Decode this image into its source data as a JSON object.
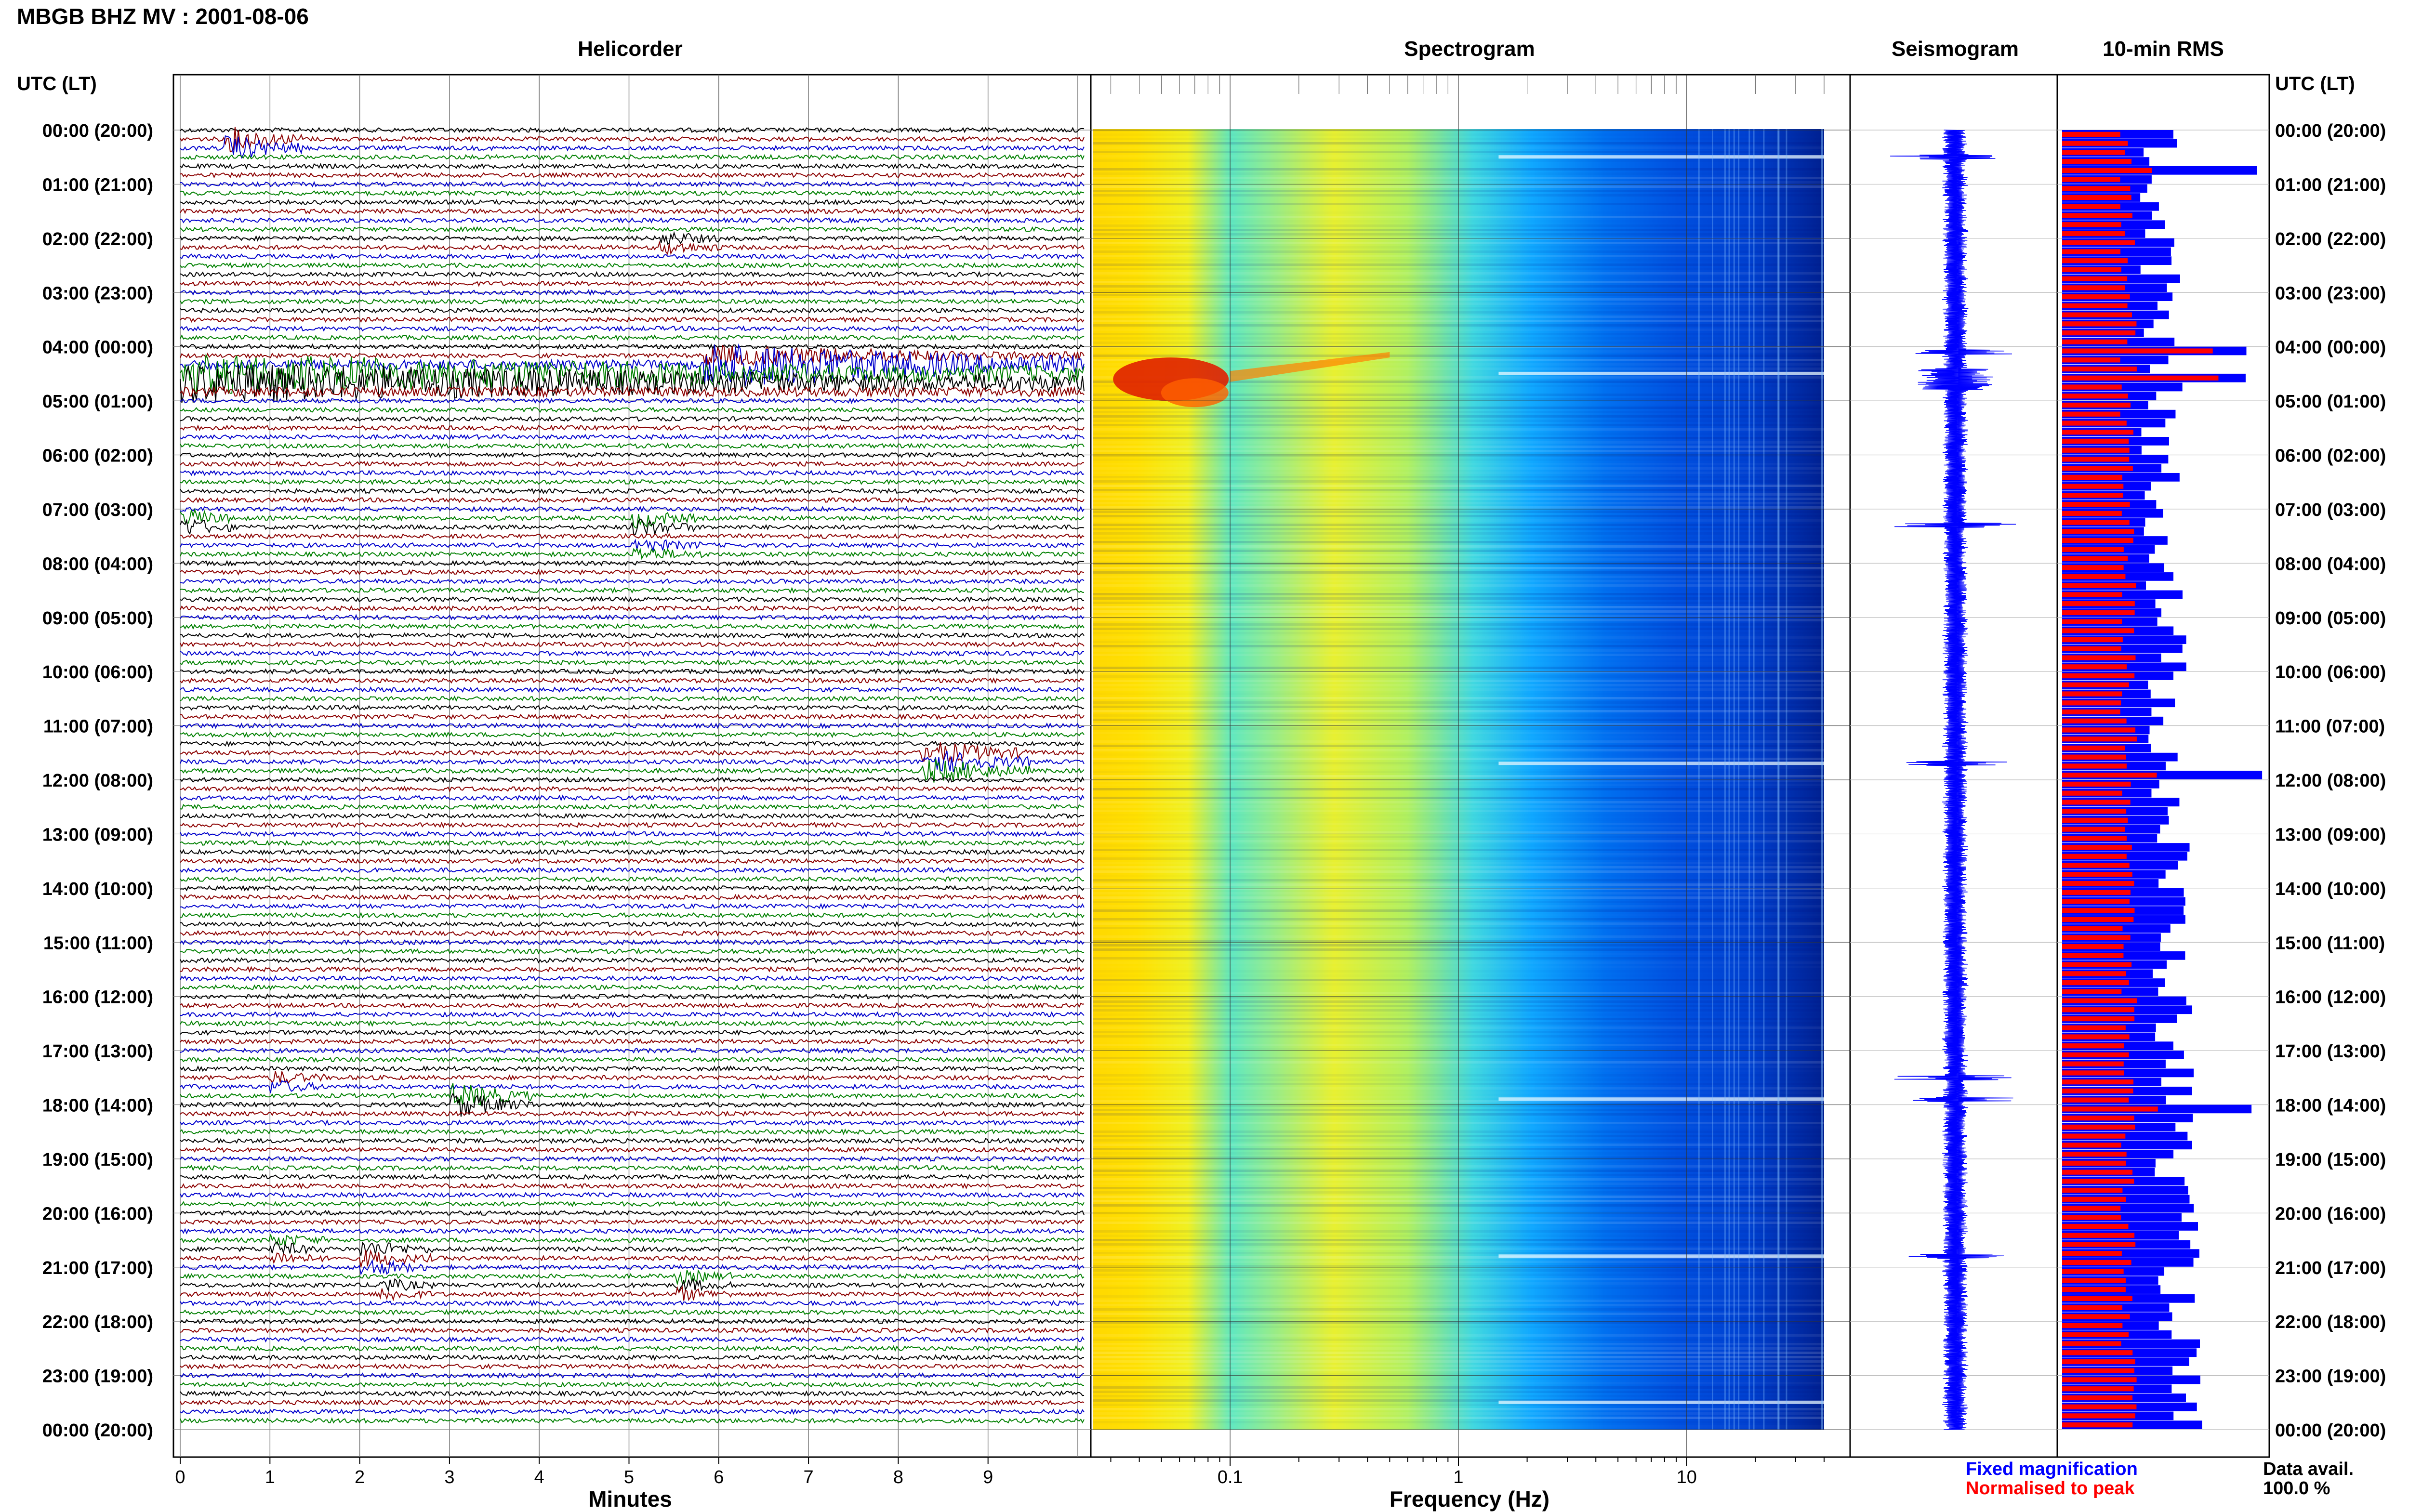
{
  "page_title": "MBGB BHZ MV : 2001-08-06",
  "left_axis_header": "UTC (LT)",
  "right_axis_header": "UTC (LT)",
  "panels": {
    "helicorder": "Helicorder",
    "spectrogram": "Spectrogram",
    "seismogram": "Seismogram",
    "rms": "10-min RMS"
  },
  "time_labels": [
    "00:00 (20:00)",
    "01:00 (21:00)",
    "02:00 (22:00)",
    "03:00 (23:00)",
    "04:00 (00:00)",
    "05:00 (01:00)",
    "06:00 (02:00)",
    "07:00 (03:00)",
    "08:00 (04:00)",
    "09:00 (05:00)",
    "10:00 (06:00)",
    "11:00 (07:00)",
    "12:00 (08:00)",
    "13:00 (09:00)",
    "14:00 (10:00)",
    "15:00 (11:00)",
    "16:00 (12:00)",
    "17:00 (13:00)",
    "18:00 (14:00)",
    "19:00 (15:00)",
    "20:00 (16:00)",
    "21:00 (17:00)",
    "22:00 (18:00)",
    "23:00 (19:00)",
    "00:00 (20:00)"
  ],
  "legend": {
    "fixed": "Fixed magnification",
    "normalised": "Normalised to peak",
    "data_avail_label": "Data avail.",
    "data_avail_value": "100.0 %"
  },
  "colors": {
    "trace_cycle": [
      "#000000",
      "#8b0000",
      "#0000cd",
      "#008000"
    ],
    "fixed": "#0000ff",
    "normalised": "#ff0000",
    "spectrogram_scale": [
      "#0010a0",
      "#0040e0",
      "#00a0ff",
      "#30e0c0",
      "#c0f030",
      "#ffe000",
      "#ff8000",
      "#e00000"
    ]
  },
  "chart_data": [
    {
      "type": "line",
      "name": "helicorder",
      "title": "Helicorder",
      "xlabel": "Minutes",
      "ylabel": "UTC (LT)",
      "x_ticks": [
        0,
        1,
        2,
        3,
        4,
        5,
        6,
        7,
        8,
        9
      ],
      "x_range": [
        0,
        10
      ],
      "lines_per_hour": 6,
      "hours": 24,
      "events": [
        {
          "hour": 0.25,
          "minute": 0.5,
          "duration": 0.9,
          "amplitude": 4,
          "color": "#008000"
        },
        {
          "hour": 2.1,
          "minute": 5.3,
          "duration": 0.7,
          "amplitude": 2,
          "color": "#8b0000"
        },
        {
          "hour": 4.3,
          "minute": 5.8,
          "duration": 4.2,
          "amplitude": 3,
          "color": "#000000"
        },
        {
          "hour": 4.55,
          "minute": 0.0,
          "duration": 10.0,
          "amplitude": 2.5,
          "color": "#008000"
        },
        {
          "hour": 7.2,
          "minute": 0.0,
          "duration": 0.6,
          "amplitude": 3,
          "color": "#008000"
        },
        {
          "hour": 7.3,
          "minute": 5.0,
          "duration": 0.7,
          "amplitude": 3,
          "color": "#000000"
        },
        {
          "hour": 7.8,
          "minute": 5.0,
          "duration": 0.8,
          "amplitude": 2,
          "color": "#008000"
        },
        {
          "hour": 11.7,
          "minute": 8.2,
          "duration": 1.2,
          "amplitude": 4,
          "color": "#0000cd"
        },
        {
          "hour": 17.6,
          "minute": 1.0,
          "duration": 0.6,
          "amplitude": 2,
          "color": "#0000cd"
        },
        {
          "hour": 17.9,
          "minute": 3.0,
          "duration": 0.9,
          "amplitude": 4,
          "color": "#000000"
        },
        {
          "hour": 20.7,
          "minute": 1.0,
          "duration": 0.6,
          "amplitude": 2,
          "color": "#000000"
        },
        {
          "hour": 20.8,
          "minute": 2.0,
          "duration": 0.8,
          "amplitude": 2.5,
          "color": "#8b0000"
        },
        {
          "hour": 21.3,
          "minute": 5.5,
          "duration": 0.6,
          "amplitude": 2,
          "color": "#000000"
        },
        {
          "hour": 21.4,
          "minute": 2.2,
          "duration": 0.6,
          "amplitude": 2,
          "color": "#8b0000"
        }
      ]
    },
    {
      "type": "heatmap",
      "name": "spectrogram",
      "title": "Spectrogram",
      "xlabel": "Frequency (Hz)",
      "x_scale": "log",
      "x_range": [
        0.025,
        40
      ],
      "x_tick_labels": [
        "0.1",
        "1",
        "10"
      ],
      "x_major_ticks": [
        0.1,
        1,
        10
      ],
      "bright_events_hours": [
        0.5,
        4.5,
        11.7,
        17.9,
        20.8,
        23.5
      ]
    },
    {
      "type": "line",
      "name": "seismogram",
      "title": "Seismogram",
      "spikes_hours": [
        0.5,
        4.1,
        4.6,
        7.3,
        11.7,
        17.5,
        17.9,
        20.8
      ]
    },
    {
      "type": "bar",
      "name": "rms",
      "title": "10-min RMS",
      "orientation": "horizontal",
      "series": [
        {
          "name": "Fixed magnification",
          "color": "#0000ff"
        },
        {
          "name": "Normalised to peak",
          "color": "#ff0000"
        }
      ],
      "hours": 24,
      "bars_per_hour": 6,
      "peaks_hours": [
        0.6,
        4.0,
        4.5,
        11.8,
        17.95
      ]
    }
  ]
}
